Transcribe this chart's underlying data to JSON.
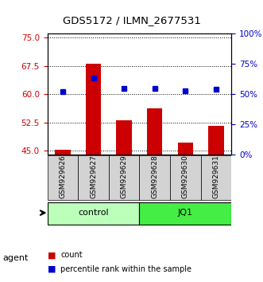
{
  "title": "GDS5172 / ILMN_2677531",
  "samples": [
    "GSM929626",
    "GSM929627",
    "GSM929629",
    "GSM929628",
    "GSM929630",
    "GSM929631"
  ],
  "counts": [
    45.2,
    68.1,
    53.0,
    56.3,
    47.2,
    51.5
  ],
  "percentiles": [
    52,
    63,
    55,
    55,
    53,
    54
  ],
  "ylim_left": [
    44,
    76
  ],
  "ylim_right": [
    0,
    100
  ],
  "yticks_left": [
    45,
    52.5,
    60,
    67.5,
    75
  ],
  "yticks_right": [
    0,
    25,
    50,
    75,
    100
  ],
  "bar_color": "#cc0000",
  "dot_color": "#0000cc",
  "groups": [
    {
      "label": "control",
      "indices": [
        0,
        1,
        2
      ],
      "color": "#bbffbb"
    },
    {
      "label": "JQ1",
      "indices": [
        3,
        4,
        5
      ],
      "color": "#44ee44"
    }
  ],
  "agent_label": "agent",
  "legend_items": [
    {
      "label": "count",
      "color": "#cc0000"
    },
    {
      "label": "percentile rank within the sample",
      "color": "#0000cc"
    }
  ],
  "grid_color": "#000000",
  "ytick_left_color": "#cc0000",
  "ytick_right_color": "#0000cc",
  "title_color": "#000000",
  "bar_baseline": 44.0
}
